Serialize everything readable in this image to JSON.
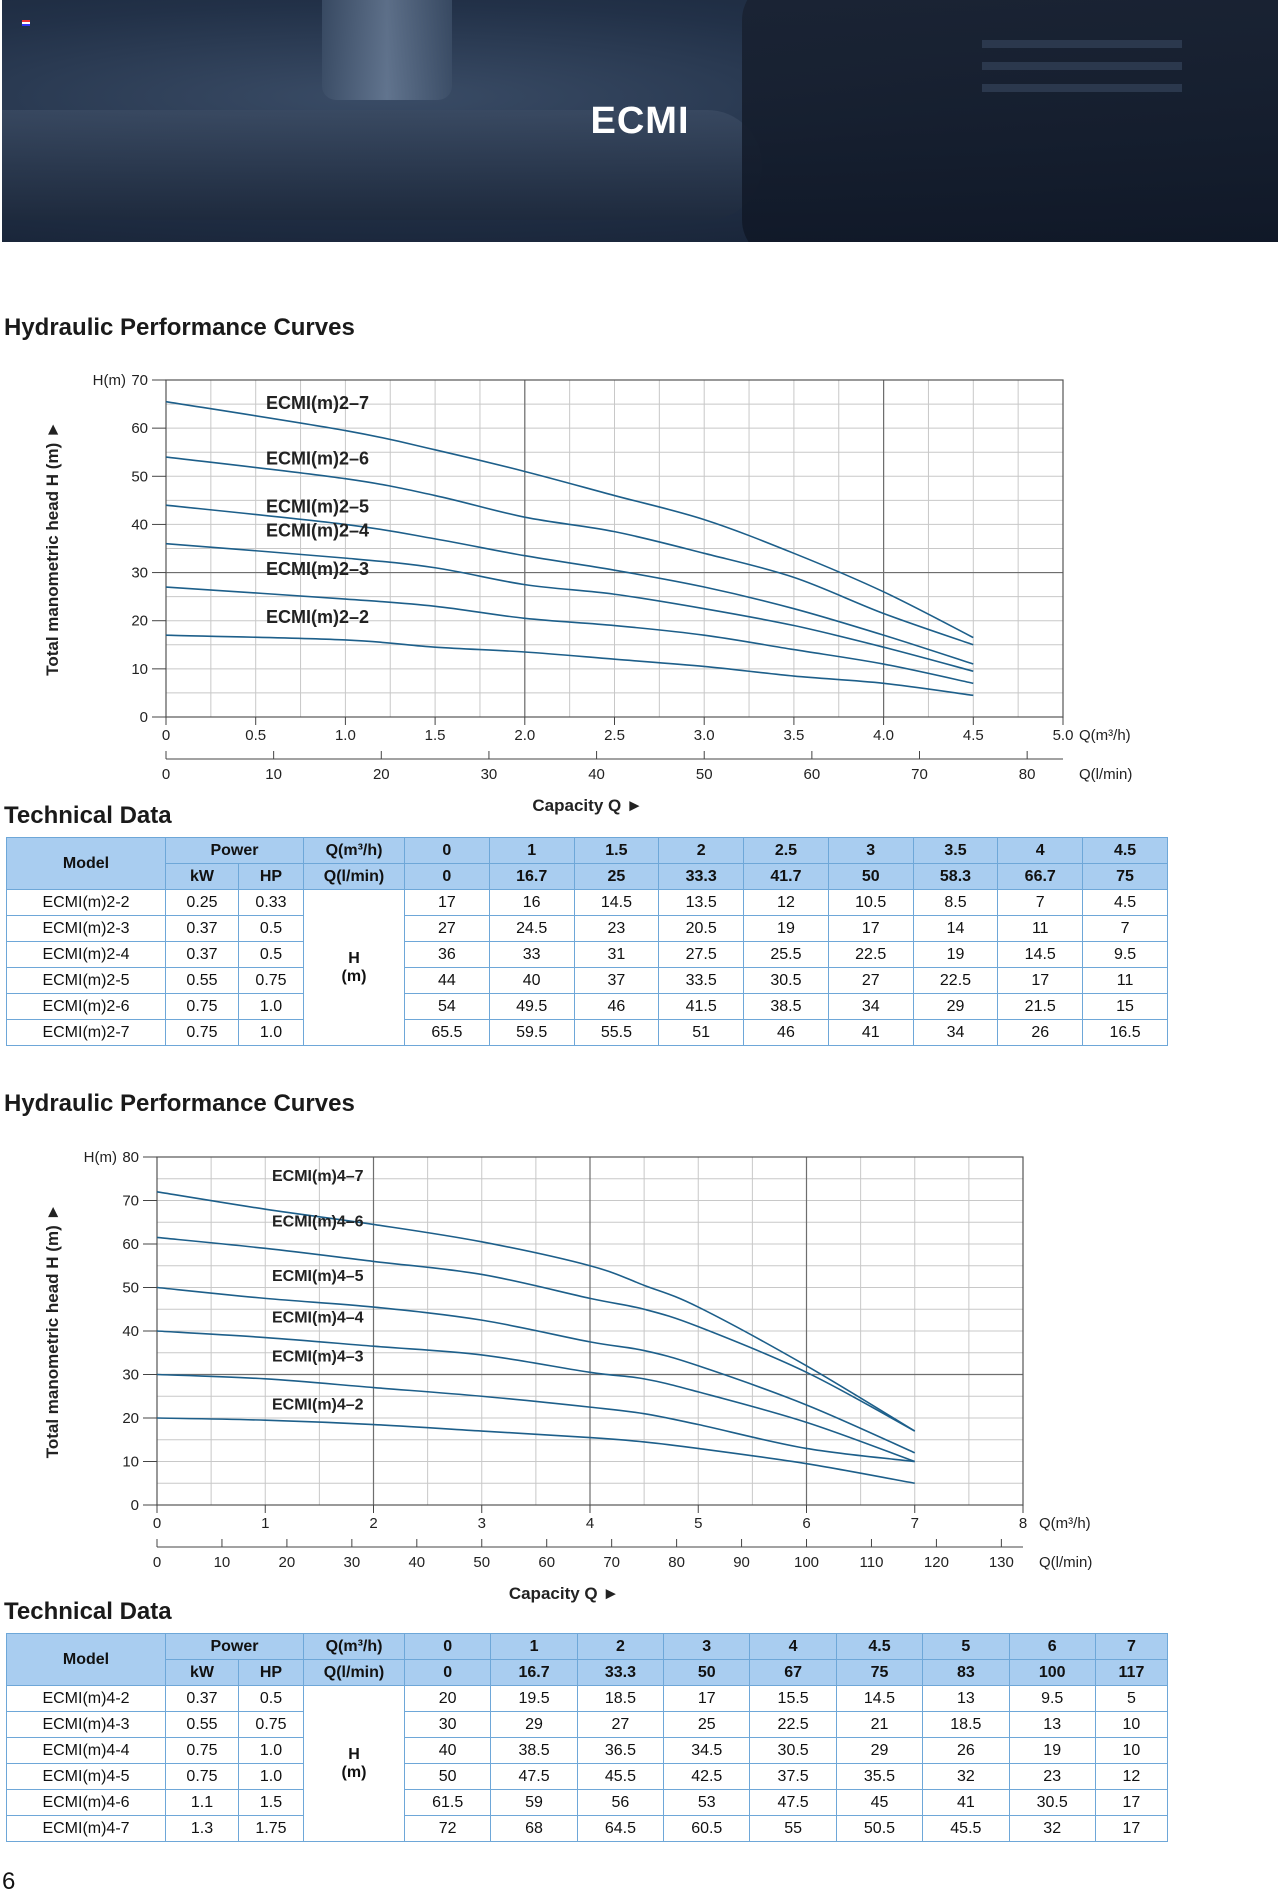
{
  "banner": {
    "title": "ECMI"
  },
  "page_number": "6",
  "chart_data": [
    {
      "type": "line",
      "title": "Hydraulic Performance Curves",
      "ylabel": "Total manometric head H (m)",
      "y_unit": "H(m)",
      "xlabel": "Capacity Q",
      "x_unit": "Q(m³/h)",
      "x2_unit": "Q(l/min)",
      "ylim": [
        0,
        70
      ],
      "xlim": [
        0,
        5
      ],
      "x2lim": [
        0,
        83.33
      ],
      "y_ticks": [
        0,
        10,
        20,
        30,
        40,
        50,
        60,
        70
      ],
      "x_ticks": [
        "0",
        "0.5",
        "1.0",
        "1.5",
        "2.0",
        "2.5",
        "3.0",
        "3.5",
        "4.0",
        "4.5",
        "5.0"
      ],
      "x2_ticks": [
        "0",
        "10",
        "20",
        "30",
        "40",
        "50",
        "60",
        "70",
        "80"
      ],
      "grid": true,
      "x": [
        0,
        1,
        1.5,
        2,
        2.5,
        3,
        3.5,
        4,
        4.5
      ],
      "series": [
        {
          "name": "ECMI(m)2–7",
          "values": [
            65.5,
            59.5,
            55.5,
            51,
            46,
            41,
            34,
            26,
            16.5
          ]
        },
        {
          "name": "ECMI(m)2–6",
          "values": [
            54,
            49.5,
            46,
            41.5,
            38.5,
            34,
            29,
            21.5,
            15
          ]
        },
        {
          "name": "ECMI(m)2–5",
          "values": [
            44,
            40,
            37,
            33.5,
            30.5,
            27,
            22.5,
            17,
            11
          ]
        },
        {
          "name": "ECMI(m)2–4",
          "values": [
            36,
            33,
            31,
            27.5,
            25.5,
            22.5,
            19,
            14.5,
            9.5
          ]
        },
        {
          "name": "ECMI(m)2–3",
          "values": [
            27,
            24.5,
            23,
            20.5,
            19,
            17,
            14,
            11,
            7
          ]
        },
        {
          "name": "ECMI(m)2–2",
          "values": [
            17,
            16,
            14.5,
            13.5,
            12,
            10.5,
            8.5,
            7,
            4.5
          ]
        }
      ]
    },
    {
      "type": "line",
      "title": "Hydraulic Performance Curves",
      "ylabel": "Total manometric head H (m)",
      "y_unit": "H(m)",
      "xlabel": "Capacity Q",
      "x_unit": "Q(m³/h)",
      "x2_unit": "Q(l/min)",
      "ylim": [
        0,
        80
      ],
      "xlim": [
        0,
        8
      ],
      "x2lim": [
        0,
        133.33
      ],
      "y_ticks": [
        0,
        10,
        20,
        30,
        40,
        50,
        60,
        70,
        80
      ],
      "x_ticks": [
        "0",
        "1",
        "2",
        "3",
        "4",
        "5",
        "6",
        "7",
        "8"
      ],
      "x2_ticks": [
        "0",
        "10",
        "20",
        "30",
        "40",
        "50",
        "60",
        "70",
        "80",
        "90",
        "100",
        "110",
        "120",
        "130"
      ],
      "grid": true,
      "x": [
        0,
        1,
        2,
        3,
        4,
        4.5,
        5,
        6,
        7
      ],
      "series": [
        {
          "name": "ECMI(m)4–7",
          "values": [
            72,
            68,
            64.5,
            60.5,
            55,
            50.5,
            45.5,
            32,
            17
          ]
        },
        {
          "name": "ECMI(m)4–6",
          "values": [
            61.5,
            59,
            56,
            53,
            47.5,
            45,
            41,
            30.5,
            17
          ]
        },
        {
          "name": "ECMI(m)4–5",
          "values": [
            50,
            47.5,
            45.5,
            42.5,
            37.5,
            35.5,
            32,
            23,
            12
          ]
        },
        {
          "name": "ECMI(m)4–4",
          "values": [
            40,
            38.5,
            36.5,
            34.5,
            30.5,
            29,
            26,
            19,
            10
          ]
        },
        {
          "name": "ECMI(m)4–3",
          "values": [
            30,
            29,
            27,
            25,
            22.5,
            21,
            18.5,
            13,
            10
          ]
        },
        {
          "name": "ECMI(m)4–2",
          "values": [
            20,
            19.5,
            18.5,
            17,
            15.5,
            14.5,
            13,
            9.5,
            5
          ]
        }
      ]
    }
  ],
  "tables": [
    {
      "title": "Technical Data",
      "model_header": "Model",
      "power_header": "Power",
      "kw_header": "kW",
      "hp_header": "HP",
      "q_m3h_header": "Q(m³/h)",
      "q_lmin_header": "Q(l/min)",
      "h_label": "H",
      "h_unit": "(m)",
      "q_m3h": [
        "0",
        "1",
        "1.5",
        "2",
        "2.5",
        "3",
        "3.5",
        "4",
        "4.5"
      ],
      "q_lmin": [
        "0",
        "16.7",
        "25",
        "33.3",
        "41.7",
        "50",
        "58.3",
        "66.7",
        "75"
      ],
      "rows": [
        {
          "model": "ECMI(m)2-2",
          "kw": "0.25",
          "hp": "0.33",
          "h": [
            "17",
            "16",
            "14.5",
            "13.5",
            "12",
            "10.5",
            "8.5",
            "7",
            "4.5"
          ]
        },
        {
          "model": "ECMI(m)2-3",
          "kw": "0.37",
          "hp": "0.5",
          "h": [
            "27",
            "24.5",
            "23",
            "20.5",
            "19",
            "17",
            "14",
            "11",
            "7"
          ]
        },
        {
          "model": "ECMI(m)2-4",
          "kw": "0.37",
          "hp": "0.5",
          "h": [
            "36",
            "33",
            "31",
            "27.5",
            "25.5",
            "22.5",
            "19",
            "14.5",
            "9.5"
          ]
        },
        {
          "model": "ECMI(m)2-5",
          "kw": "0.55",
          "hp": "0.75",
          "h": [
            "44",
            "40",
            "37",
            "33.5",
            "30.5",
            "27",
            "22.5",
            "17",
            "11"
          ]
        },
        {
          "model": "ECMI(m)2-6",
          "kw": "0.75",
          "hp": "1.0",
          "h": [
            "54",
            "49.5",
            "46",
            "41.5",
            "38.5",
            "34",
            "29",
            "21.5",
            "15"
          ]
        },
        {
          "model": "ECMI(m)2-7",
          "kw": "0.75",
          "hp": "1.0",
          "h": [
            "65.5",
            "59.5",
            "55.5",
            "51",
            "46",
            "41",
            "34",
            "26",
            "16.5"
          ]
        }
      ]
    },
    {
      "title": "Technical Data",
      "model_header": "Model",
      "power_header": "Power",
      "kw_header": "kW",
      "hp_header": "HP",
      "q_m3h_header": "Q(m³/h)",
      "q_lmin_header": "Q(l/min)",
      "h_label": "H",
      "h_unit": "(m)",
      "q_m3h": [
        "0",
        "1",
        "2",
        "3",
        "4",
        "4.5",
        "5",
        "6",
        "7"
      ],
      "q_lmin": [
        "0",
        "16.7",
        "33.3",
        "50",
        "67",
        "75",
        "83",
        "100",
        "117"
      ],
      "rows": [
        {
          "model": "ECMI(m)4-2",
          "kw": "0.37",
          "hp": "0.5",
          "h": [
            "20",
            "19.5",
            "18.5",
            "17",
            "15.5",
            "14.5",
            "13",
            "9.5",
            "5"
          ]
        },
        {
          "model": "ECMI(m)4-3",
          "kw": "0.55",
          "hp": "0.75",
          "h": [
            "30",
            "29",
            "27",
            "25",
            "22.5",
            "21",
            "18.5",
            "13",
            "10"
          ]
        },
        {
          "model": "ECMI(m)4-4",
          "kw": "0.75",
          "hp": "1.0",
          "h": [
            "40",
            "38.5",
            "36.5",
            "34.5",
            "30.5",
            "29",
            "26",
            "19",
            "10"
          ]
        },
        {
          "model": "ECMI(m)4-5",
          "kw": "0.75",
          "hp": "1.0",
          "h": [
            "50",
            "47.5",
            "45.5",
            "42.5",
            "37.5",
            "35.5",
            "32",
            "23",
            "12"
          ]
        },
        {
          "model": "ECMI(m)4-6",
          "kw": "1.1",
          "hp": "1.5",
          "h": [
            "61.5",
            "59",
            "56",
            "53",
            "47.5",
            "45",
            "41",
            "30.5",
            "17"
          ]
        },
        {
          "model": "ECMI(m)4-7",
          "kw": "1.3",
          "hp": "1.75",
          "h": [
            "72",
            "68",
            "64.5",
            "60.5",
            "55",
            "50.5",
            "45.5",
            "32",
            "17"
          ]
        }
      ]
    }
  ],
  "colors": {
    "curve": "#1d5f8a",
    "grid_major": "#6e6e6e",
    "grid_minor": "#c8c8c8",
    "table_header": "#a9cdf0",
    "table_border": "#6ea7d8"
  }
}
